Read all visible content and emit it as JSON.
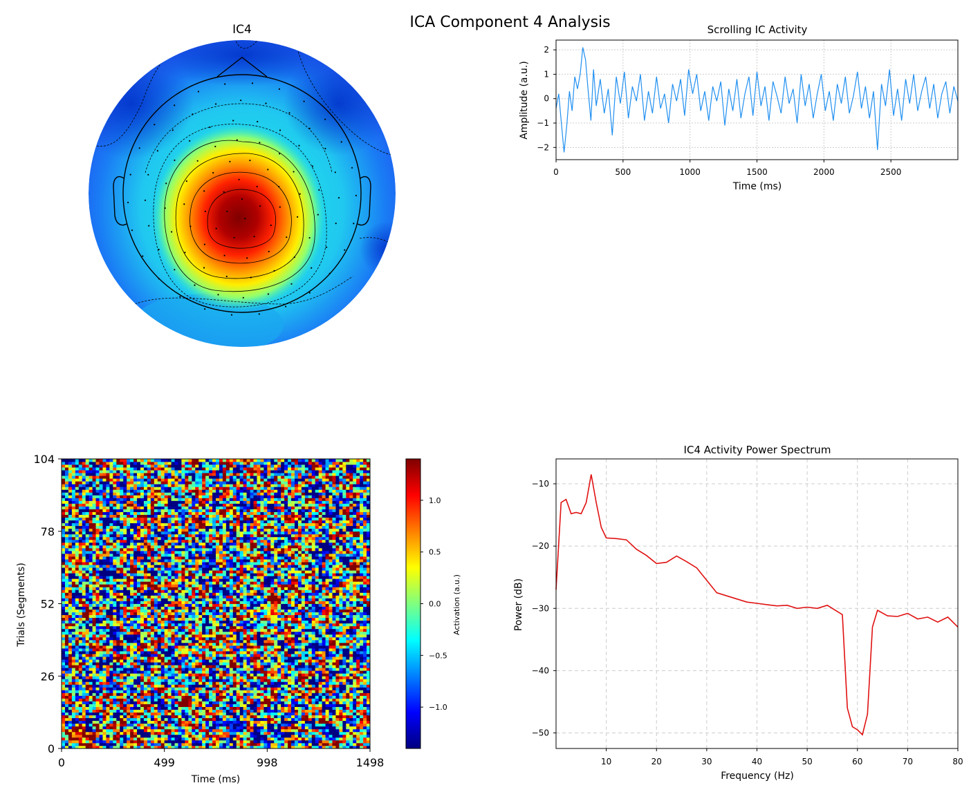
{
  "figure": {
    "suptitle": "ICA Component 4 Analysis"
  },
  "chart_data": [
    {
      "type": "heatmap",
      "subtype": "topomap",
      "title": "IC4",
      "colormap": "jet",
      "peak_region": "centro-posterior (slightly left of midline)",
      "contours": true,
      "sensor_markers": true
    },
    {
      "type": "line",
      "title": "Scrolling IC Activity",
      "xlabel": "Time (ms)",
      "ylabel": "Amplitude (a.u.)",
      "xlim": [
        0,
        3000
      ],
      "ylim": [
        -2.5,
        2.4
      ],
      "xticks": [
        0,
        500,
        1000,
        1500,
        2000,
        2500
      ],
      "yticks": [
        -2,
        -1,
        0,
        1,
        2
      ],
      "grid": true,
      "color": "#1f8ff0",
      "series": [
        {
          "x": [
            0,
            20,
            40,
            60,
            80,
            100,
            120,
            140,
            160,
            180,
            200,
            220,
            240,
            260,
            280,
            300,
            330,
            360,
            390,
            420,
            450,
            480,
            510,
            540,
            570,
            600,
            630,
            660,
            690,
            720,
            750,
            780,
            810,
            840,
            870,
            900,
            930,
            960,
            990,
            1020,
            1050,
            1080,
            1110,
            1140,
            1170,
            1200,
            1230,
            1260,
            1290,
            1320,
            1350,
            1380,
            1410,
            1440,
            1470,
            1500,
            1530,
            1560,
            1590,
            1620,
            1650,
            1680,
            1710,
            1740,
            1770,
            1800,
            1830,
            1860,
            1890,
            1920,
            1950,
            1980,
            2010,
            2040,
            2070,
            2100,
            2130,
            2160,
            2190,
            2220,
            2250,
            2280,
            2310,
            2340,
            2370,
            2400,
            2430,
            2460,
            2490,
            2520,
            2550,
            2580,
            2610,
            2640,
            2670,
            2700,
            2730,
            2760,
            2790,
            2820,
            2850,
            2880,
            2910,
            2940,
            2970,
            3000
          ],
          "values": [
            -0.4,
            0.2,
            -1.0,
            -2.2,
            -1.1,
            0.3,
            -0.5,
            0.9,
            0.4,
            1.0,
            2.1,
            1.6,
            0.3,
            -0.9,
            1.2,
            -0.3,
            0.8,
            -0.6,
            0.4,
            -1.5,
            0.9,
            -0.2,
            1.1,
            -0.8,
            0.5,
            -0.1,
            1.0,
            -0.9,
            0.3,
            -0.6,
            0.9,
            -0.4,
            0.2,
            -1.0,
            0.6,
            -0.1,
            0.8,
            -0.7,
            1.2,
            0.2,
            1.0,
            -0.5,
            0.3,
            -0.9,
            0.5,
            -0.1,
            0.7,
            -1.1,
            0.4,
            -0.5,
            0.8,
            -0.8,
            0.2,
            0.9,
            -0.7,
            1.1,
            -0.3,
            0.5,
            -0.9,
            0.7,
            0.1,
            -0.6,
            0.9,
            -0.2,
            0.4,
            -1.0,
            1.0,
            -0.3,
            0.6,
            -0.8,
            0.2,
            1.0,
            -0.5,
            0.3,
            -0.9,
            0.6,
            -0.2,
            0.9,
            -0.6,
            0.1,
            1.1,
            -0.4,
            0.5,
            -0.8,
            0.3,
            -2.1,
            0.6,
            -0.3,
            1.2,
            -0.7,
            0.4,
            -0.9,
            0.8,
            -0.2,
            1.0,
            -0.5,
            0.3,
            0.9,
            -0.4,
            0.6,
            -0.8,
            0.2,
            0.7,
            -0.6,
            0.5,
            -0.1
          ]
        }
      ]
    },
    {
      "type": "heatmap",
      "subtype": "erp-image",
      "xlabel": "Time (ms)",
      "ylabel": "Trials (Segments)",
      "xticks": [
        "0",
        "499",
        "998",
        "1498"
      ],
      "yticks": [
        "0",
        "26",
        "52",
        "78",
        "104"
      ],
      "colormap": "jet",
      "colorbar": {
        "label": "Activation (a.u.)",
        "range": [
          -1.4,
          1.4
        ],
        "ticks": [
          "−1.0",
          "−0.5",
          "0.0",
          "0.5",
          "1.0"
        ]
      },
      "rows": 104,
      "cols": 90
    },
    {
      "type": "line",
      "title": "IC4 Activity Power Spectrum",
      "xlabel": "Frequency (Hz)",
      "ylabel": "Power (dB)",
      "xlim": [
        0,
        80
      ],
      "ylim": [
        -52.5,
        -6
      ],
      "xticks": [
        "10",
        "20",
        "30",
        "40",
        "50",
        "60",
        "70",
        "80"
      ],
      "yticks": [
        "−10",
        "−20",
        "−30",
        "−40",
        "−50"
      ],
      "grid": true,
      "color": "#e01010",
      "series": [
        {
          "x": [
            0,
            1,
            2,
            3,
            4,
            5,
            6,
            7,
            8,
            9,
            10,
            12,
            14,
            16,
            18,
            20,
            22,
            24,
            26,
            28,
            30,
            32,
            34,
            36,
            38,
            40,
            42,
            44,
            46,
            48,
            50,
            52,
            54,
            56,
            57,
            58,
            59,
            60,
            61,
            62,
            63,
            64,
            66,
            68,
            70,
            72,
            74,
            76,
            78,
            80
          ],
          "values": [
            -27,
            -13,
            -12.5,
            -14.8,
            -14.6,
            -14.8,
            -13,
            -8.5,
            -13,
            -17,
            -18.7,
            -18.8,
            -19,
            -20.5,
            -21.5,
            -22.8,
            -22.6,
            -21.6,
            -22.5,
            -23.5,
            -25.5,
            -27.5,
            -28,
            -28.5,
            -29,
            -29.2,
            -29.4,
            -29.6,
            -29.5,
            -30,
            -29.8,
            -30,
            -29.5,
            -30.5,
            -31,
            -46,
            -49,
            -49.5,
            -50.3,
            -47,
            -33,
            -30.3,
            -31.2,
            -31.3,
            -30.8,
            -31.7,
            -31.4,
            -32.2,
            -31.4,
            -33
          ]
        }
      ]
    }
  ]
}
